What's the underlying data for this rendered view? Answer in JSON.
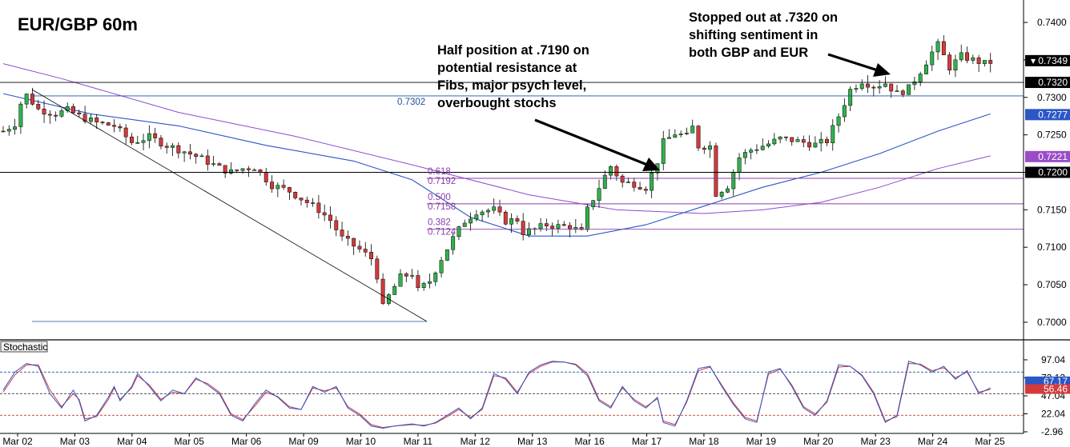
{
  "chart_data": {
    "type": "candlestick",
    "title": "EUR/GBP 60m",
    "y_ticks": [
      "0.7400",
      "0.7350",
      "0.7300",
      "0.7250",
      "0.7200",
      "0.7150",
      "0.7100",
      "0.7050",
      "0.7000"
    ],
    "ylim": [
      0.6985,
      0.7415
    ],
    "x_ticks": [
      "Mar 02",
      "Mar 03",
      "Mar 04",
      "Mar 05",
      "Mar 06",
      "Mar 09",
      "Mar 10",
      "Mar 11",
      "Mar 12",
      "Mar 13",
      "Mar 16",
      "Mar 17",
      "Mar 18",
      "Mar 19",
      "Mar 20",
      "Mar 23",
      "Mar 24",
      "Mar 25"
    ],
    "price_path": [
      [
        0,
        0.7255
      ],
      [
        2,
        0.7265
      ],
      [
        3,
        0.7292
      ],
      [
        4,
        0.7303
      ],
      [
        6,
        0.7284
      ],
      [
        9,
        0.7278
      ],
      [
        11,
        0.7283
      ],
      [
        13,
        0.7275
      ],
      [
        16,
        0.7266
      ],
      [
        19,
        0.7262
      ],
      [
        22,
        0.724
      ],
      [
        25,
        0.7247
      ],
      [
        28,
        0.7236
      ],
      [
        31,
        0.7228
      ],
      [
        34,
        0.7218
      ],
      [
        37,
        0.7206
      ],
      [
        39,
        0.72
      ],
      [
        41,
        0.7205
      ],
      [
        43,
        0.7207
      ],
      [
        46,
        0.7183
      ],
      [
        49,
        0.7175
      ],
      [
        51,
        0.7165
      ],
      [
        54,
        0.715
      ],
      [
        56,
        0.7136
      ],
      [
        58,
        0.7112
      ],
      [
        61,
        0.7097
      ],
      [
        63,
        0.7085
      ],
      [
        64,
        0.7062
      ],
      [
        65,
        0.702
      ],
      [
        66,
        0.7035
      ],
      [
        68,
        0.706
      ],
      [
        70,
        0.7065
      ],
      [
        71,
        0.7042
      ],
      [
        73,
        0.7055
      ],
      [
        75,
        0.7085
      ],
      [
        77,
        0.7112
      ],
      [
        79,
        0.7135
      ],
      [
        81,
        0.7148
      ],
      [
        84,
        0.715
      ],
      [
        86,
        0.7135
      ],
      [
        88,
        0.7137
      ],
      [
        89,
        0.712
      ],
      [
        91,
        0.7124
      ],
      [
        93,
        0.713
      ],
      [
        95,
        0.7128
      ],
      [
        97,
        0.7128
      ],
      [
        99,
        0.712
      ],
      [
        100,
        0.715
      ],
      [
        103,
        0.7195
      ],
      [
        104,
        0.7208
      ],
      [
        106,
        0.7186
      ],
      [
        108,
        0.7185
      ],
      [
        110,
        0.718
      ],
      [
        112,
        0.7215
      ],
      [
        113,
        0.724
      ],
      [
        115,
        0.7252
      ],
      [
        117,
        0.7248
      ],
      [
        118,
        0.726
      ],
      [
        119,
        0.7235
      ],
      [
        121,
        0.7235
      ],
      [
        122,
        0.7172
      ],
      [
        124,
        0.7182
      ],
      [
        126,
        0.722
      ],
      [
        128,
        0.723
      ],
      [
        131,
        0.7238
      ],
      [
        133,
        0.7245
      ],
      [
        135,
        0.7243
      ],
      [
        137,
        0.724
      ],
      [
        139,
        0.7237
      ],
      [
        141,
        0.7242
      ],
      [
        143,
        0.7275
      ],
      [
        145,
        0.731
      ],
      [
        147,
        0.7322
      ],
      [
        149,
        0.7315
      ],
      [
        151,
        0.7319
      ],
      [
        153,
        0.7305
      ],
      [
        155,
        0.7312
      ],
      [
        157,
        0.7335
      ],
      [
        159,
        0.736
      ],
      [
        160,
        0.737
      ],
      [
        162,
        0.734
      ],
      [
        164,
        0.7355
      ],
      [
        166,
        0.735
      ],
      [
        168,
        0.7345
      ],
      [
        169,
        0.7347
      ]
    ],
    "ma_slow": [
      [
        0,
        0.7345
      ],
      [
        10,
        0.7325
      ],
      [
        30,
        0.728
      ],
      [
        50,
        0.7248
      ],
      [
        70,
        0.721
      ],
      [
        90,
        0.717
      ],
      [
        105,
        0.715
      ],
      [
        120,
        0.7145
      ],
      [
        130,
        0.715
      ],
      [
        140,
        0.716
      ],
      [
        150,
        0.718
      ],
      [
        160,
        0.7205
      ],
      [
        169,
        0.7222
      ]
    ],
    "ma_fast": [
      [
        0,
        0.7305
      ],
      [
        15,
        0.7278
      ],
      [
        30,
        0.7262
      ],
      [
        45,
        0.7236
      ],
      [
        60,
        0.7215
      ],
      [
        70,
        0.719
      ],
      [
        80,
        0.714
      ],
      [
        90,
        0.7115
      ],
      [
        100,
        0.7115
      ],
      [
        110,
        0.713
      ],
      [
        120,
        0.7155
      ],
      [
        130,
        0.718
      ],
      [
        140,
        0.72
      ],
      [
        150,
        0.7225
      ],
      [
        160,
        0.7255
      ],
      [
        169,
        0.7278
      ]
    ],
    "hlines": [
      {
        "label": "0.7302",
        "value": 0.7302
      },
      {
        "label": "0.7320",
        "value": 0.732
      },
      {
        "label": "0.7200",
        "value": 0.72
      }
    ],
    "fib_levels": [
      {
        "ratio": "0.618",
        "price": "0.7192",
        "value": 0.7192
      },
      {
        "ratio": "0.500",
        "price": "0.7158",
        "value": 0.7158
      },
      {
        "ratio": "0.382",
        "price": "0.7124",
        "value": 0.7124
      }
    ],
    "price_tags": [
      {
        "text": "▾ 0.7349",
        "value": 0.7349,
        "color": "#000000",
        "text_color": "#ffffff"
      },
      {
        "text": "0.7320",
        "value": 0.732,
        "color": "#000000",
        "text_color": "#ffffff"
      },
      {
        "text": "0.7277",
        "value": 0.7277,
        "color": "#2a56c6",
        "text_color": "#ffffff"
      },
      {
        "text": "0.7221",
        "value": 0.7221,
        "color": "#9a4cc7",
        "text_color": "#ffffff"
      },
      {
        "text": "0.7200",
        "value": 0.72,
        "color": "#000000",
        "text_color": "#ffffff"
      }
    ],
    "annotations": [
      {
        "lines": [
          "Half position at .7190 on",
          "potential resistance at",
          "Fibs, major psych level,",
          "overbought stochs"
        ]
      },
      {
        "lines": [
          "Stopped out at .7320 on",
          "shifting sentiment in",
          "both GBP and EUR"
        ]
      }
    ],
    "stochastic": {
      "label": "Stochastic",
      "y_ticks": [
        "97.04",
        "72.12",
        "47.04",
        "22.04",
        "-2.96"
      ],
      "ylim": [
        -2.96,
        107
      ],
      "values_k": [
        [
          0,
          55
        ],
        [
          2,
          80
        ],
        [
          4,
          92
        ],
        [
          6,
          88
        ],
        [
          8,
          50
        ],
        [
          10,
          30
        ],
        [
          12,
          55
        ],
        [
          13,
          40
        ],
        [
          14,
          12
        ],
        [
          16,
          20
        ],
        [
          18,
          45
        ],
        [
          19,
          60
        ],
        [
          20,
          40
        ],
        [
          22,
          60
        ],
        [
          23,
          78
        ],
        [
          25,
          60
        ],
        [
          27,
          40
        ],
        [
          29,
          55
        ],
        [
          31,
          50
        ],
        [
          33,
          72
        ],
        [
          35,
          62
        ],
        [
          37,
          50
        ],
        [
          39,
          20
        ],
        [
          41,
          12
        ],
        [
          43,
          35
        ],
        [
          45,
          55
        ],
        [
          47,
          45
        ],
        [
          49,
          30
        ],
        [
          51,
          28
        ],
        [
          53,
          60
        ],
        [
          55,
          52
        ],
        [
          57,
          60
        ],
        [
          59,
          30
        ],
        [
          61,
          20
        ],
        [
          63,
          5
        ],
        [
          65,
          2
        ],
        [
          67,
          5
        ],
        [
          70,
          8
        ],
        [
          72,
          5
        ],
        [
          74,
          10
        ],
        [
          76,
          20
        ],
        [
          78,
          30
        ],
        [
          80,
          15
        ],
        [
          82,
          30
        ],
        [
          84,
          78
        ],
        [
          86,
          70
        ],
        [
          88,
          50
        ],
        [
          90,
          80
        ],
        [
          92,
          90
        ],
        [
          94,
          95
        ],
        [
          96,
          94
        ],
        [
          98,
          90
        ],
        [
          100,
          75
        ],
        [
          102,
          40
        ],
        [
          104,
          30
        ],
        [
          106,
          60
        ],
        [
          108,
          40
        ],
        [
          110,
          30
        ],
        [
          112,
          45
        ],
        [
          113,
          10
        ],
        [
          115,
          5
        ],
        [
          117,
          40
        ],
        [
          119,
          85
        ],
        [
          121,
          88
        ],
        [
          123,
          60
        ],
        [
          125,
          35
        ],
        [
          127,
          15
        ],
        [
          129,
          10
        ],
        [
          131,
          80
        ],
        [
          133,
          85
        ],
        [
          135,
          60
        ],
        [
          137,
          30
        ],
        [
          139,
          20
        ],
        [
          141,
          40
        ],
        [
          143,
          90
        ],
        [
          145,
          88
        ],
        [
          147,
          75
        ],
        [
          149,
          50
        ],
        [
          151,
          10
        ],
        [
          153,
          20
        ],
        [
          155,
          95
        ],
        [
          157,
          90
        ],
        [
          159,
          80
        ],
        [
          161,
          88
        ],
        [
          163,
          70
        ],
        [
          165,
          82
        ],
        [
          167,
          50
        ],
        [
          169,
          58
        ]
      ],
      "values_d": [
        [
          0,
          52
        ],
        [
          2,
          76
        ],
        [
          4,
          90
        ],
        [
          6,
          90
        ],
        [
          8,
          55
        ],
        [
          10,
          32
        ],
        [
          12,
          50
        ],
        [
          13,
          42
        ],
        [
          14,
          15
        ],
        [
          16,
          18
        ],
        [
          18,
          42
        ],
        [
          19,
          58
        ],
        [
          20,
          42
        ],
        [
          22,
          58
        ],
        [
          23,
          75
        ],
        [
          25,
          62
        ],
        [
          27,
          42
        ],
        [
          29,
          52
        ],
        [
          31,
          50
        ],
        [
          33,
          70
        ],
        [
          35,
          64
        ],
        [
          37,
          52
        ],
        [
          39,
          22
        ],
        [
          41,
          14
        ],
        [
          43,
          32
        ],
        [
          45,
          52
        ],
        [
          47,
          46
        ],
        [
          49,
          32
        ],
        [
          51,
          28
        ],
        [
          53,
          58
        ],
        [
          55,
          54
        ],
        [
          57,
          58
        ],
        [
          59,
          32
        ],
        [
          61,
          22
        ],
        [
          63,
          7
        ],
        [
          65,
          3
        ],
        [
          67,
          5
        ],
        [
          70,
          7
        ],
        [
          72,
          6
        ],
        [
          74,
          9
        ],
        [
          76,
          18
        ],
        [
          78,
          28
        ],
        [
          80,
          17
        ],
        [
          82,
          28
        ],
        [
          84,
          75
        ],
        [
          86,
          72
        ],
        [
          88,
          52
        ],
        [
          90,
          78
        ],
        [
          92,
          88
        ],
        [
          94,
          94
        ],
        [
          96,
          94
        ],
        [
          98,
          91
        ],
        [
          100,
          78
        ],
        [
          102,
          42
        ],
        [
          104,
          32
        ],
        [
          106,
          58
        ],
        [
          108,
          42
        ],
        [
          110,
          32
        ],
        [
          112,
          43
        ],
        [
          113,
          12
        ],
        [
          115,
          7
        ],
        [
          117,
          38
        ],
        [
          119,
          82
        ],
        [
          121,
          87
        ],
        [
          123,
          62
        ],
        [
          125,
          37
        ],
        [
          127,
          17
        ],
        [
          129,
          12
        ],
        [
          131,
          77
        ],
        [
          133,
          84
        ],
        [
          135,
          62
        ],
        [
          137,
          32
        ],
        [
          139,
          22
        ],
        [
          141,
          38
        ],
        [
          143,
          87
        ],
        [
          145,
          88
        ],
        [
          147,
          76
        ],
        [
          149,
          52
        ],
        [
          151,
          12
        ],
        [
          153,
          18
        ],
        [
          155,
          92
        ],
        [
          157,
          91
        ],
        [
          159,
          82
        ],
        [
          161,
          86
        ],
        [
          163,
          72
        ],
        [
          165,
          80
        ],
        [
          167,
          52
        ],
        [
          169,
          56
        ]
      ],
      "tags": [
        {
          "text": "67.17",
          "value": 67.17,
          "color": "#2a56c6",
          "text_color": "#ffffff"
        },
        {
          "text": "56.46",
          "value": 56.46,
          "color": "#d43a3a",
          "text_color": "#ffffff"
        }
      ]
    }
  }
}
